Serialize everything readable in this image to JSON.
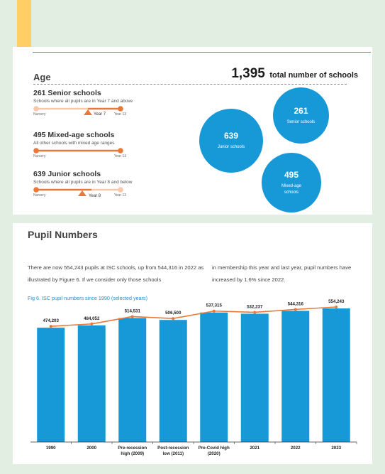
{
  "colors": {
    "background": "#e3eee3",
    "accent_blue": "#1799d8",
    "accent_orange": "#e8793a",
    "light_orange": "#f7c9aa",
    "bookmark": "#ffcf66"
  },
  "age": {
    "heading": "Age",
    "total_number": "1,395",
    "total_label": "total number of schools",
    "senior": {
      "title": "261 Senior schools",
      "desc": "Schools where all pupils are in Year 7 and above",
      "start_label": "Nursery",
      "end_label": "Year 13",
      "marker_label": "Year 7"
    },
    "mixed": {
      "title": "495 Mixed-age schools",
      "desc": "All other schools with mixed age ranges",
      "start_label": "Nursery",
      "end_label": "Year 13"
    },
    "junior": {
      "title": "639 Junior schools",
      "desc": "Schools where all pupils are in Year 8 and below",
      "start_label": "Nursery",
      "end_label": "Year 13",
      "marker_label": "Year 8"
    },
    "bubbles": [
      {
        "value": "261",
        "label": "Senior schools"
      },
      {
        "value": "639",
        "label": "Junior schools"
      },
      {
        "value": "495",
        "label": "Mixed-age schools"
      }
    ]
  },
  "pupil": {
    "heading": "Pupil Numbers",
    "para_left": "There are now 554,243 pupils at ISC schools, up from 544,316 in 2022 as illustrated by Figure 6. If we consider only those schools",
    "para_right": "in membership this year and last year, pupil numbers have increased by 1.6% since 2022.",
    "figure_title": "Fig 6. ISC pupil numbers since 1990 (selected years)"
  },
  "chart_data": {
    "type": "bar",
    "title": "Fig 6. ISC pupil numbers since 1990 (selected years)",
    "categories": [
      [
        "1990"
      ],
      [
        "2000"
      ],
      [
        "Pre-recession",
        "high (2009)"
      ],
      [
        "Post-recession",
        "low (2011)"
      ],
      [
        "Pre-Covid high",
        "(2020)"
      ],
      [
        "2021"
      ],
      [
        "2022"
      ],
      [
        "2023"
      ]
    ],
    "values": [
      474203,
      484052,
      514531,
      506500,
      537315,
      532237,
      544316,
      554243
    ],
    "value_labels": [
      "474,203",
      "484,052",
      "514,531",
      "506,500",
      "537,315",
      "532,237",
      "544,316",
      "554,243"
    ],
    "overlay": "line",
    "grid": false,
    "legend": "none"
  }
}
